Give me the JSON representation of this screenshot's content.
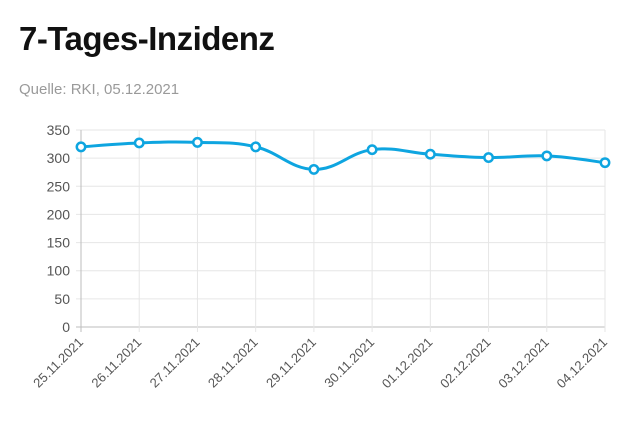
{
  "header": {
    "title": "7-Tages-Inzidenz",
    "source": "Quelle: RKI, 05.12.2021"
  },
  "colors": {
    "series": "#0ea5e0",
    "grid": "#e6e6e6",
    "axis": "#bdbdbd"
  },
  "chart_data": {
    "type": "line",
    "title": "7-Tages-Inzidenz",
    "subtitle": "Quelle: RKI, 05.12.2021",
    "xlabel": "",
    "ylabel": "",
    "categories": [
      "25.11.2021",
      "26.11.2021",
      "27.11.2021",
      "28.11.2021",
      "29.11.2021",
      "30.11.2021",
      "01.12.2021",
      "02.12.2021",
      "03.12.2021",
      "04.12.2021"
    ],
    "series": [
      {
        "values": [
          320,
          327,
          328,
          320,
          280,
          315,
          307,
          301,
          304,
          292
        ]
      }
    ],
    "ylim": [
      0,
      350
    ],
    "yticks": [
      0,
      50,
      100,
      150,
      200,
      250,
      300,
      350
    ],
    "grid": true,
    "smooth": true,
    "legend": "none"
  }
}
